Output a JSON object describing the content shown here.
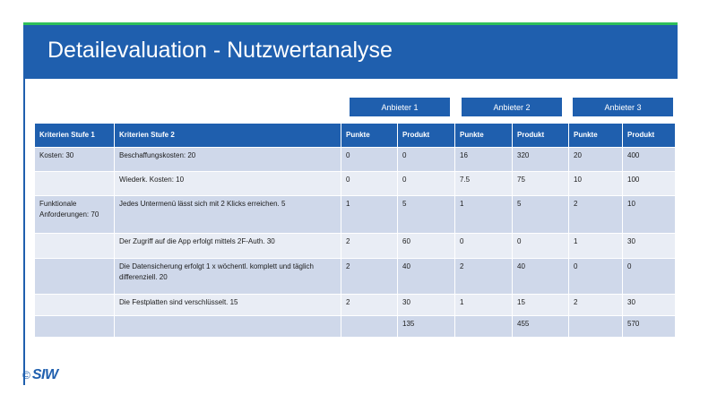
{
  "title": "Detailevaluation - Nutzwertanalyse",
  "vendors": [
    "Anbieter 1",
    "Anbieter 2",
    "Anbieter 3"
  ],
  "columns": [
    "Kriterien Stufe 1",
    "Kriterien Stufe 2",
    "Punkte",
    "Produkt",
    "Punkte",
    "Produkt",
    "Punkte",
    "Produkt"
  ],
  "rows": [
    {
      "k1": "Kosten: 30",
      "k2": "Beschaffungskosten: 20",
      "p1": "0",
      "pr1": "0",
      "p2": "16",
      "pr2": "320",
      "p3": "20",
      "pr3": "400"
    },
    {
      "k1": "",
      "k2": "Wiederk. Kosten: 10",
      "p1": "0",
      "pr1": "0",
      "p2": "7.5",
      "pr2": "75",
      "p3": "10",
      "pr3": "100"
    },
    {
      "k1": "Funktionale Anforderungen: 70",
      "k2": "Jedes Untermenü lässt sich mit 2 Klicks erreichen. 5",
      "p1": "1",
      "pr1": "5",
      "p2": "1",
      "pr2": "5",
      "p3": "2",
      "pr3": "10"
    },
    {
      "k1": "",
      "k2": "Der Zugriff auf die App erfolgt mittels 2F-Auth. 30",
      "p1": "2",
      "pr1": "60",
      "p2": "0",
      "pr2": "0",
      "p3": "1",
      "pr3": "30"
    },
    {
      "k1": "",
      "k2": "Die Datensicherung erfolgt 1 x wöchentl. komplett und täglich differenziell. 20",
      "p1": "2",
      "pr1": "40",
      "p2": "2",
      "pr2": "40",
      "p3": "0",
      "pr3": "0"
    },
    {
      "k1": "",
      "k2": "Die Festplatten sind verschlüsselt. 15",
      "p1": "2",
      "pr1": "30",
      "p2": "1",
      "pr2": "15",
      "p3": "2",
      "pr3": "30"
    },
    {
      "k1": "",
      "k2": "",
      "p1": "",
      "pr1": "135",
      "p2": "",
      "pr2": "455",
      "p3": "",
      "pr3": "570"
    }
  ],
  "logo": {
    "copyright": "©",
    "text": "SIW"
  },
  "colors": {
    "accent": "#1f5fae",
    "green_line": "#2fbf5a",
    "row_dark": "#cfd8ea",
    "row_light": "#e9edf5"
  }
}
